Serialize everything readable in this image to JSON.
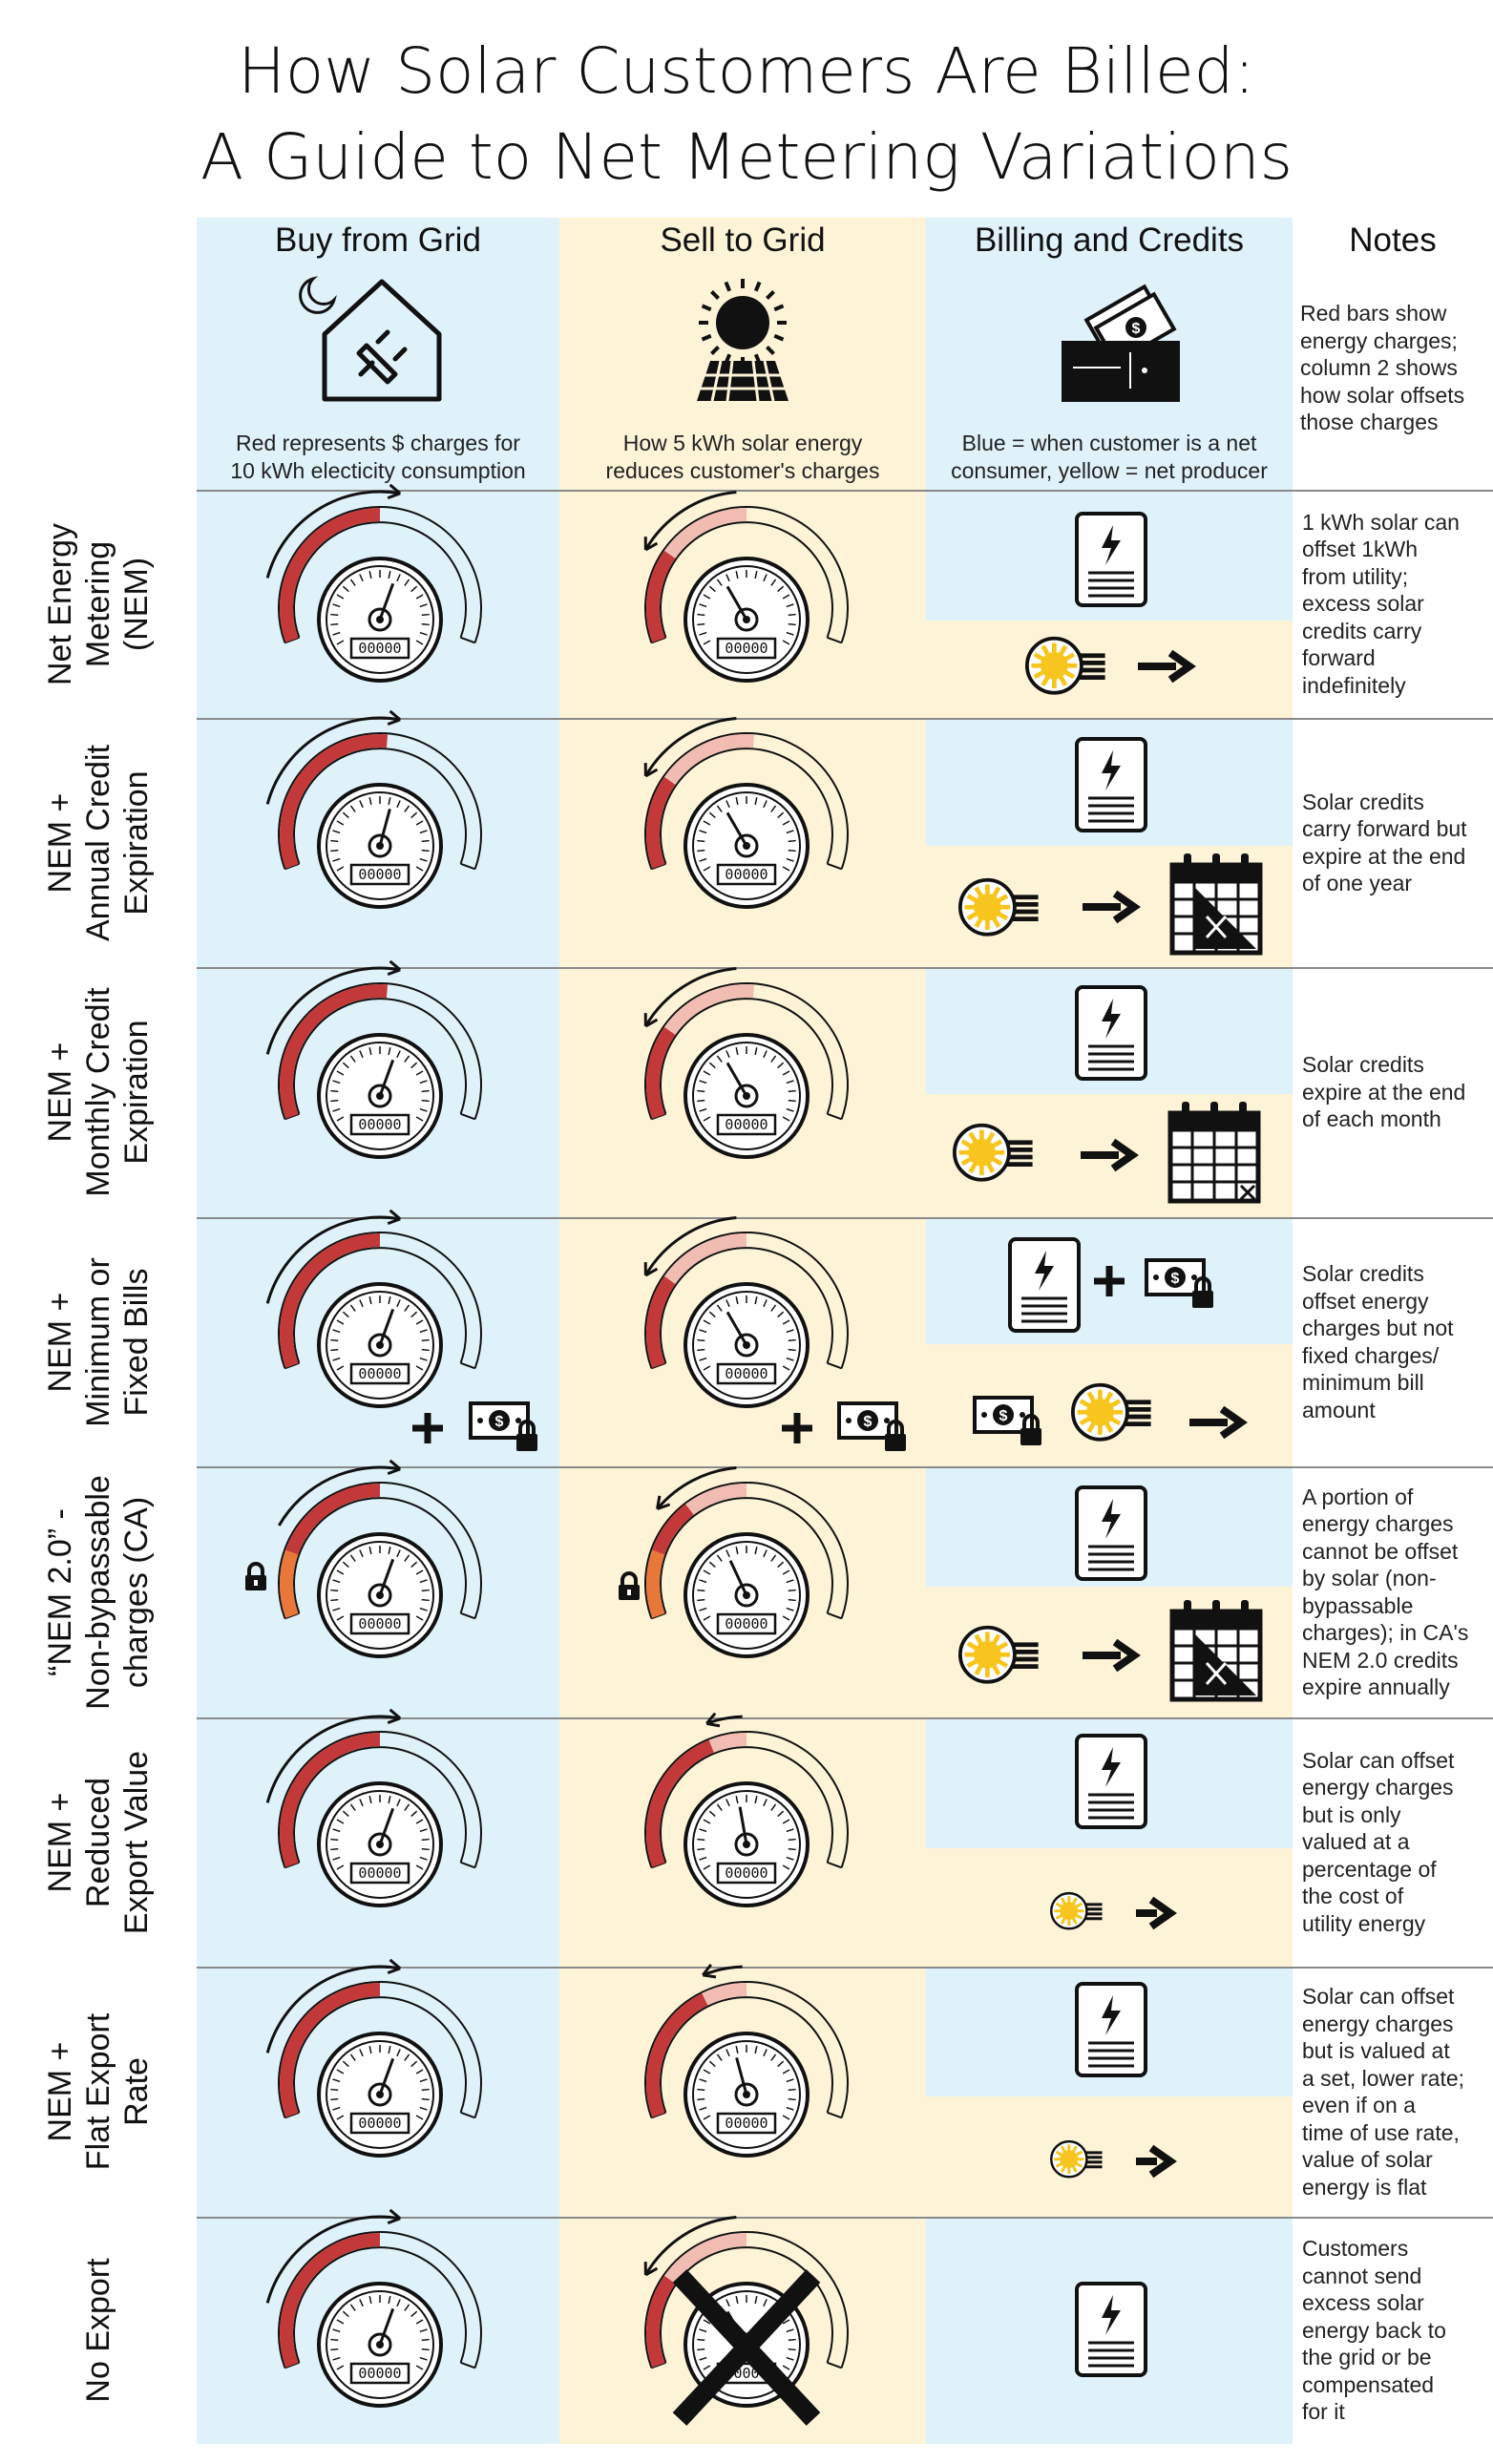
{
  "title": {
    "line1": "How Solar Customers Are Billed:",
    "line2": "A Guide to Net Metering Variations"
  },
  "columns": [
    {
      "header": "Buy from Grid",
      "subtitle": [
        "Red represents $ charges for",
        "10 kWh electicity consumption"
      ],
      "icon": "house-plug-icon"
    },
    {
      "header": "Sell to Grid",
      "subtitle": [
        "How 5 kWh solar energy",
        "reduces customer's charges"
      ],
      "icon": "sun-solar-panel-icon"
    },
    {
      "header": "Billing and Credits",
      "subtitle": [
        "Blue = when customer is a net",
        "consumer, yellow = net producer"
      ],
      "icon": "wallet-money-icon"
    },
    {
      "header": "Notes",
      "subtitle": [
        "Red bars show",
        "energy charges;",
        "column 2 shows",
        "how solar offsets",
        "those charges"
      ]
    }
  ],
  "rows": [
    {
      "label": [
        "Net Energy",
        "Metering",
        "(NEM)"
      ],
      "note": [
        "1 kWh solar can",
        "offset 1kWh",
        "from utility;",
        "excess solar",
        "credits carry",
        "forward",
        "indefinitely"
      ]
    },
    {
      "label": [
        "NEM +",
        "Annual Credit",
        "Expiration"
      ],
      "note": [
        "Solar credits",
        "carry forward but",
        "expire at the end",
        "of one year"
      ]
    },
    {
      "label": [
        "NEM +",
        "Monthly Credit",
        "Expiration"
      ],
      "note": [
        "Solar credits",
        "expire at the end",
        "of each month"
      ]
    },
    {
      "label": [
        "NEM +",
        "Minimum or",
        "Fixed Bills"
      ],
      "note": [
        "Solar credits",
        "offset energy",
        "charges but not",
        "fixed charges/",
        "minimum bill",
        "amount"
      ]
    },
    {
      "label": [
        "“NEM 2.0” -",
        "Non-bypassable",
        "charges (CA)"
      ],
      "note": [
        "A portion of",
        "energy charges",
        "cannot be offset",
        "by solar (non-",
        "bypassable",
        "charges); in CA's",
        "NEM 2.0 credits",
        "expire annually"
      ]
    },
    {
      "label": [
        "NEM +",
        "Reduced",
        "Export Value"
      ],
      "note": [
        "Solar can offset",
        "energy charges",
        "but is only",
        "valued at a",
        "percentage of",
        "the cost of",
        "utility energy"
      ]
    },
    {
      "label": [
        "NEM +",
        "Flat Export",
        "Rate"
      ],
      "note": [
        "Solar can offset",
        "energy charges",
        "but is valued at",
        "a set, lower rate;",
        "even if on a",
        "time of use rate,",
        "value of solar",
        "energy is flat"
      ]
    },
    {
      "label": [
        "No Export"
      ],
      "note": [
        "Customers",
        "cannot send",
        "excess solar",
        "energy back to",
        "the grid or be",
        "compensated",
        "for it"
      ]
    }
  ],
  "meter_counter": "00000",
  "colors": {
    "buy_bg": "#dff2fa",
    "sell_bg": "#fdf3d7",
    "charge_red": "#c3393a",
    "offset_pink": "#f1bdb2",
    "nonbypass_orange": "#e8773a",
    "sun_yellow": "#f7c51e"
  }
}
